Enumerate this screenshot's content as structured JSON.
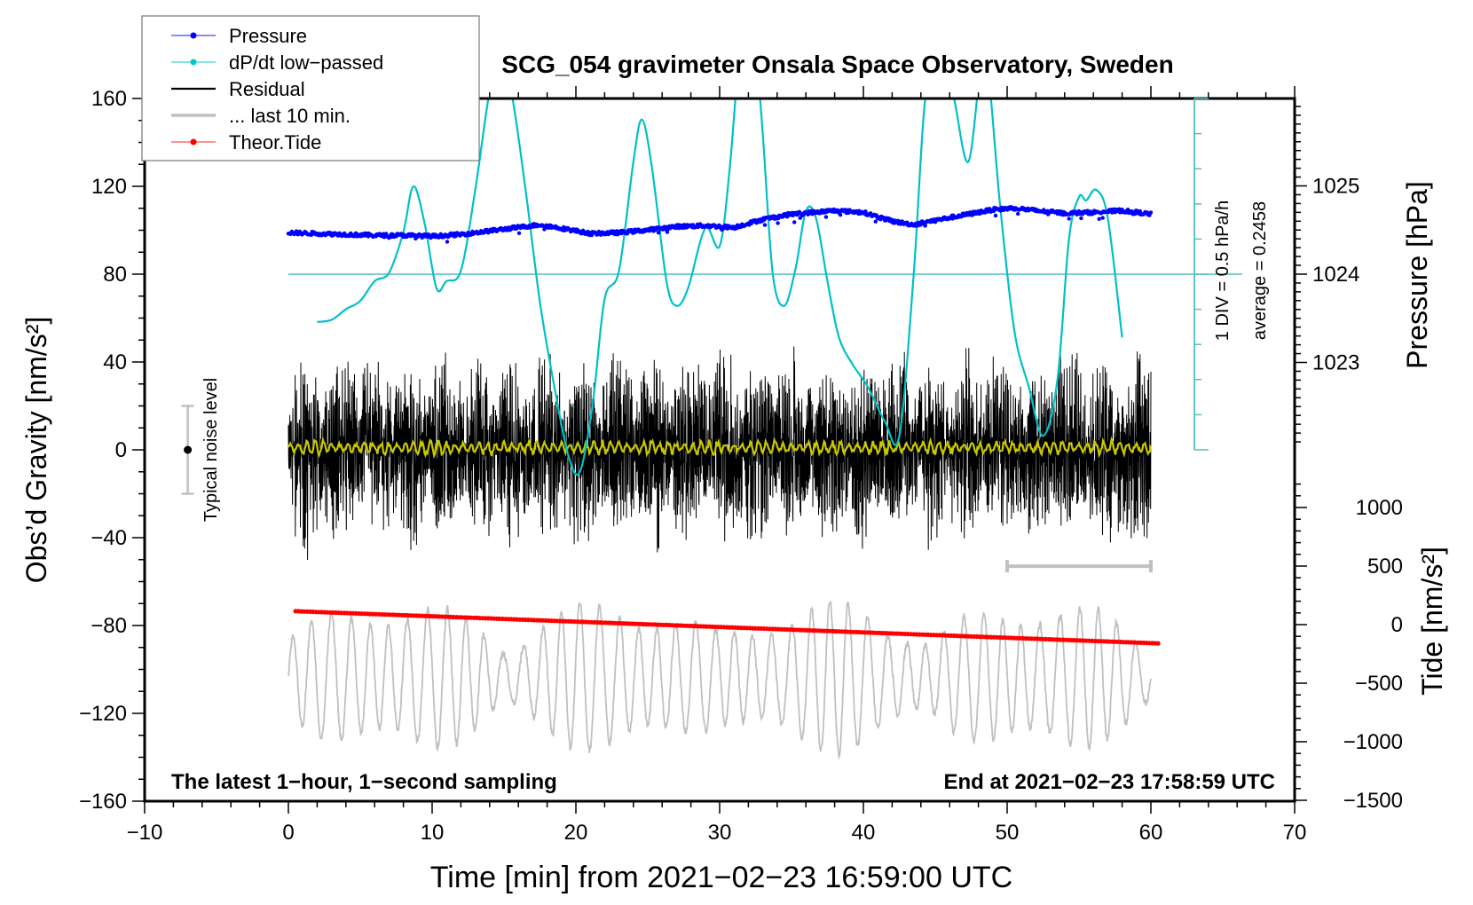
{
  "chart_data": {
    "type": "line",
    "title": "SCG_054 gravimeter Onsala Space Observatory, Sweden",
    "xlabel": "Time [min] from 2021−02−23 16:59:00 UTC",
    "ylabel_left": "Obs’d Gravity [nm/s²]",
    "ylabel_right_top": "Pressure [hPa]",
    "ylabel_right_bottom": "Tide [nm/s²]",
    "xlim": [
      -10,
      70
    ],
    "ylim_left": [
      -160,
      160
    ],
    "pressure_axis": {
      "ticks": [
        1023,
        1024,
        1025
      ],
      "tick_labels": [
        "1023",
        "1024",
        "1025"
      ]
    },
    "tide_axis": {
      "ticks": [
        -1500,
        -1000,
        -500,
        0,
        500,
        1000
      ],
      "tick_labels": [
        "−1500",
        "−1000",
        "−500",
        "0",
        "500",
        "1000"
      ]
    },
    "x_ticks": [
      -10,
      0,
      10,
      20,
      30,
      40,
      50,
      60,
      70
    ],
    "x_tick_labels": [
      "−10",
      "0",
      "10",
      "20",
      "30",
      "40",
      "50",
      "60",
      "70"
    ],
    "y_ticks_left": [
      -160,
      -120,
      -80,
      -40,
      0,
      40,
      80,
      120,
      160
    ],
    "y_tick_labels_left": [
      "−160",
      "−120",
      "−80",
      "−40",
      "0",
      "40",
      "80",
      "120",
      "160"
    ],
    "grid": false,
    "legend_placement": "top-left",
    "legend": [
      {
        "label": "Pressure",
        "color": "#0000ff",
        "style": "line-dot"
      },
      {
        "label": "dP/dt low−passed",
        "color": "#00c8c8",
        "style": "line-dot"
      },
      {
        "label": "Residual",
        "color": "#000000",
        "style": "line"
      },
      {
        "label": "... last 10 min.",
        "color": "#c0c0c0",
        "style": "thick-line"
      },
      {
        "label": "Theor.Tide",
        "color": "#ff0000",
        "style": "line-dot"
      }
    ],
    "annotations": {
      "bottom_left": "The latest 1−hour, 1−second sampling",
      "bottom_right": "End at 2021−02−23 17:58:59 UTC",
      "noise_label": "Typical noise level",
      "noise_level": {
        "x": -7,
        "center": 0,
        "half_range": 20
      },
      "dpdt_scale": "1 DIV = 0.5 hPa/h",
      "dpdt_average": "average = 0.2458",
      "last10_bar": {
        "x_start": 50,
        "x_end": 60,
        "y": -53
      }
    },
    "series": [
      {
        "name": "Pressure",
        "axis": "pressure",
        "unit": "hPa",
        "x": [
          0,
          2,
          4,
          6,
          8,
          10,
          12,
          14,
          16,
          17.5,
          19,
          21,
          23,
          25,
          27,
          29,
          31,
          33,
          35,
          36.5,
          38,
          40,
          42,
          43.5,
          45,
          47,
          49,
          50.5,
          52,
          54,
          56,
          58,
          60
        ],
        "values": [
          1024.47,
          1024.46,
          1024.45,
          1024.44,
          1024.44,
          1024.43,
          1024.45,
          1024.49,
          1024.53,
          1024.56,
          1024.52,
          1024.46,
          1024.47,
          1024.5,
          1024.54,
          1024.55,
          1024.53,
          1024.62,
          1024.68,
          1024.7,
          1024.72,
          1024.7,
          1024.6,
          1024.56,
          1024.61,
          1024.67,
          1024.73,
          1024.75,
          1024.72,
          1024.69,
          1024.7,
          1024.72,
          1024.68
        ]
      },
      {
        "name": "dP/dt low-passed",
        "axis": "dpdt",
        "unit": "hPa/h",
        "x": [
          2,
          3,
          4,
          5,
          6,
          7,
          8,
          8.7,
          9.5,
          10.3,
          11,
          12,
          13,
          14,
          14.7,
          15.5,
          16.5,
          17.5,
          18.5,
          19.5,
          20.3,
          21.2,
          22,
          23,
          24,
          24.6,
          25.3,
          26.3,
          27,
          27.8,
          29,
          30,
          30.7,
          31.4,
          32,
          32.5,
          33,
          33.7,
          34.5,
          35.3,
          36,
          36.7,
          37.5,
          38.3,
          39.3,
          40.3,
          41.5,
          42.5,
          43.5,
          44.3,
          45.2,
          45.5,
          46.3,
          47.3,
          48.2,
          48.7,
          49.5,
          50.5,
          51.5,
          52.5,
          53.5,
          54.3,
          55,
          55.5,
          56.2,
          57,
          58
        ],
        "values": [
          -0.68,
          -0.65,
          -0.5,
          -0.38,
          -0.1,
          0.02,
          0.6,
          1.25,
          0.7,
          -0.2,
          -0.1,
          0.05,
          1.2,
          2.6,
          2.95,
          2.6,
          1.2,
          -0.4,
          -1.6,
          -2.6,
          -2.8,
          -1.8,
          -0.35,
          0.05,
          1.6,
          2.2,
          1.5,
          -0.1,
          -0.45,
          -0.2,
          0.65,
          0.4,
          1.5,
          3.2,
          3.6,
          3.2,
          2.0,
          0.0,
          -0.45,
          0.1,
          0.9,
          0.8,
          -0.1,
          -0.9,
          -1.3,
          -1.6,
          -2.1,
          -2.3,
          0.0,
          2.5,
          3.0,
          3.05,
          2.5,
          1.6,
          3.0,
          2.85,
          1.0,
          -0.8,
          -1.6,
          -2.3,
          -1.5,
          0.5,
          1.1,
          1.05,
          1.2,
          0.8,
          -0.9
        ]
      },
      {
        "name": "Residual",
        "axis": "gravity",
        "unit": "nm/s²",
        "x_range": [
          0,
          60
        ],
        "envelope_amplitude": 28,
        "mean": 0
      },
      {
        "name": "Residual (smoothed)",
        "axis": "gravity",
        "unit": "nm/s²",
        "color": "#c8c800",
        "x_range": [
          0,
          60
        ],
        "envelope_amplitude": 3,
        "mean": 1
      },
      {
        "name": "... last 10 min.",
        "axis": "tide",
        "unit": "nm/s²",
        "x_range": [
          0,
          60
        ],
        "mean": -450,
        "envelope_amplitude": 550
      },
      {
        "name": "Theor.Tide",
        "axis": "tide",
        "unit": "nm/s²",
        "x": [
          0.5,
          60.5
        ],
        "values": [
          115,
          -160
        ]
      }
    ]
  }
}
